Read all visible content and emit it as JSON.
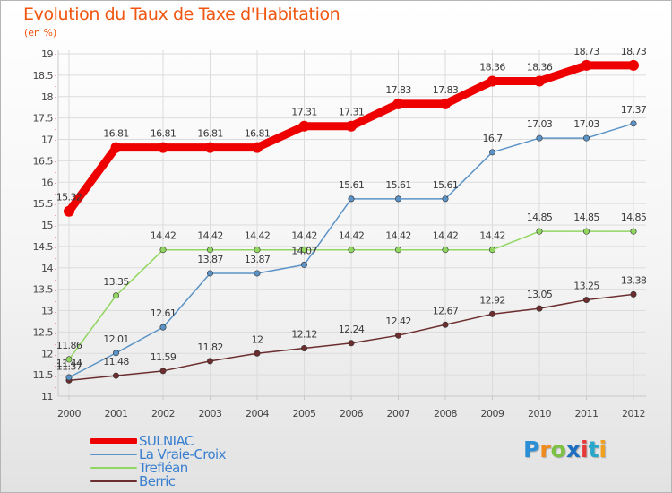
{
  "title": "Evolution du Taux de Taxe d'Habitation",
  "subtitle": "(en %)",
  "logo": {
    "letters": [
      "P",
      "r",
      "o",
      "x",
      "i",
      "t",
      "i"
    ],
    "colors": [
      "#2c8fd6",
      "#f08a1c",
      "#7cc142",
      "#1f6fc0",
      "#e63939",
      "#27a7c9",
      "#f0a01c"
    ]
  },
  "chart_data": {
    "type": "line",
    "x": [
      "2000",
      "2001",
      "2002",
      "2003",
      "2004",
      "2005",
      "2006",
      "2007",
      "2008",
      "2009",
      "2010",
      "2011",
      "2012"
    ],
    "ylim": [
      11,
      19
    ],
    "yticks": [
      "11",
      "11.5",
      "12",
      "12.5",
      "13",
      "13.5",
      "14",
      "14.5",
      "15",
      "15.5",
      "16",
      "16.5",
      "17",
      "17.5",
      "18",
      "18.5",
      "19"
    ],
    "grid": true,
    "legend_position": "bottom-left",
    "series": [
      {
        "name": "SULNIAC",
        "color": "#ee0000",
        "values": [
          15.32,
          16.81,
          16.81,
          16.81,
          16.81,
          17.31,
          17.31,
          17.83,
          17.83,
          18.36,
          18.36,
          18.73,
          18.73
        ],
        "labels": [
          "15.32",
          "16.81",
          "16.81",
          "16.81",
          "16.81",
          "17.31",
          "17.31",
          "17.83",
          "17.83",
          "18.36",
          "18.36",
          "18.73",
          "18.73"
        ]
      },
      {
        "name": "La Vraie-Croix",
        "color": "#5b93c7",
        "values": [
          11.44,
          12.01,
          12.61,
          13.87,
          13.87,
          14.07,
          15.61,
          15.61,
          15.61,
          16.7,
          17.03,
          17.03,
          17.37
        ],
        "labels": [
          "11.44",
          "12.01",
          "12.61",
          "13.87",
          "13.87",
          "14.07",
          "15.61",
          "15.61",
          "15.61",
          "16.7",
          "17.03",
          "17.03",
          "17.37"
        ]
      },
      {
        "name": "Trefléan",
        "color": "#92d662",
        "values": [
          11.86,
          13.35,
          14.42,
          14.42,
          14.42,
          14.42,
          14.42,
          14.42,
          14.42,
          14.42,
          14.85,
          14.85,
          14.85
        ],
        "labels": [
          "11.86",
          "13.35",
          "14.42",
          "14.42",
          "14.42",
          "14.42",
          "14.42",
          "14.42",
          "14.42",
          "14.42",
          "14.85",
          "14.85",
          "14.85"
        ]
      },
      {
        "name": "Berric",
        "color": "#6b2d2d",
        "values": [
          11.37,
          11.48,
          11.59,
          11.82,
          12,
          12.12,
          12.24,
          12.42,
          12.67,
          12.92,
          13.05,
          13.25,
          13.38
        ],
        "labels": [
          "11.37",
          "11.48",
          "11.59",
          "11.82",
          "12",
          "12.12",
          "12.24",
          "12.42",
          "12.67",
          "12.92",
          "13.05",
          "13.25",
          "13.38"
        ]
      }
    ]
  }
}
